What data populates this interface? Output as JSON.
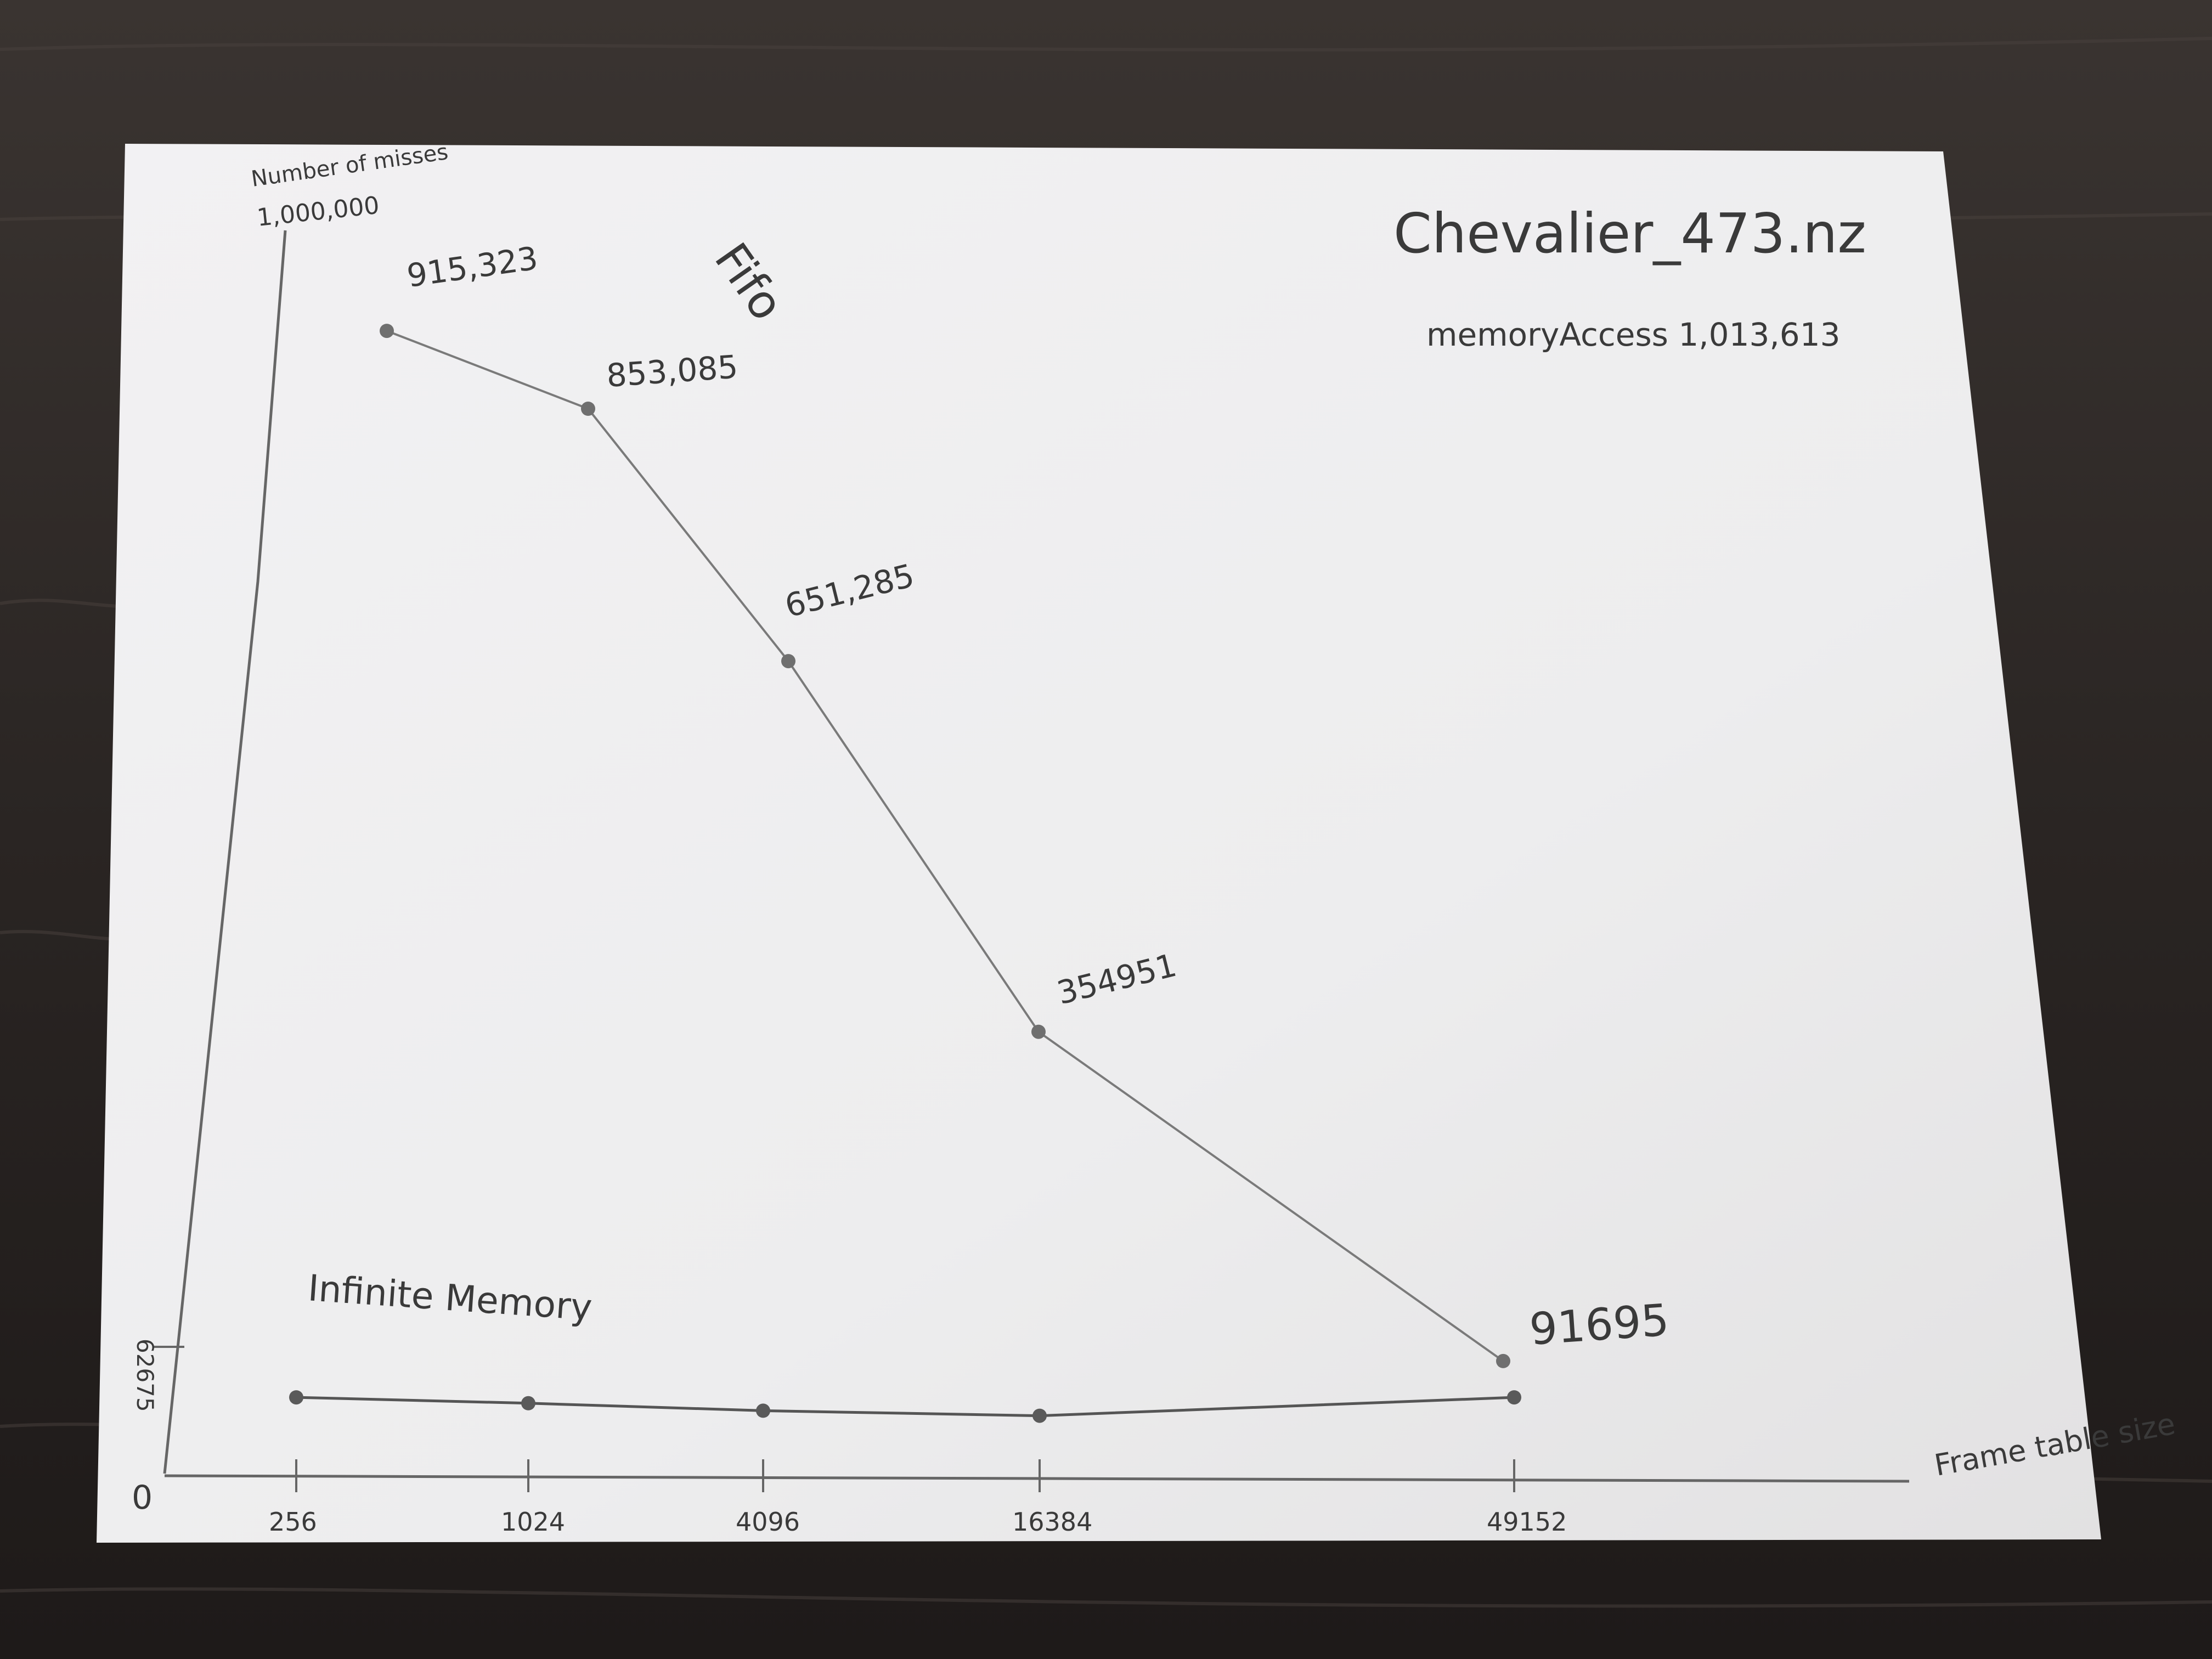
{
  "chart_data": {
    "type": "line",
    "title": "Chevalier_473.nz",
    "subtitle": "memoryAccess 1,013,613",
    "ylabel": "Number of misses",
    "xlabel": "Frame table size",
    "y_tick_labels": {
      "top": "1,000,000",
      "low": "62675",
      "origin": "0"
    },
    "x_ticks": [
      "256",
      "1024",
      "4096",
      "16384",
      "49152"
    ],
    "ylim": [
      0,
      1000000
    ],
    "series": [
      {
        "name": "Fifo",
        "x": [
          "256",
          "1024",
          "4096",
          "16384",
          "49152"
        ],
        "values": [
          915323,
          853085,
          651285,
          354951,
          91695
        ],
        "labels": [
          "915,323",
          "853,085",
          "651,285",
          "354951",
          "91695"
        ]
      },
      {
        "name": "Infinite Memory",
        "x": [
          "256",
          "1024",
          "4096",
          "16384",
          "49152"
        ],
        "values": [
          62675,
          58000,
          52000,
          48000,
          62675
        ]
      }
    ],
    "grid": false,
    "legend": "none"
  },
  "colors": {
    "background": "#2b2624",
    "paper": "#efeeee",
    "ink": "#555555",
    "ink_dark": "#2e2e2e"
  }
}
